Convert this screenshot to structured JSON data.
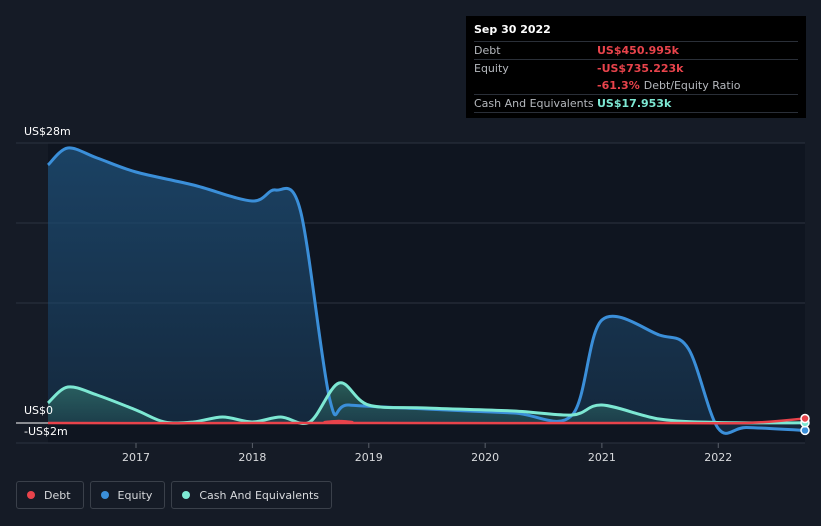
{
  "chart_data": {
    "type": "area",
    "x_ticks": [
      "2017",
      "2018",
      "2019",
      "2020",
      "2021",
      "2022"
    ],
    "y_label_top": "US$28m",
    "y_label_zero": "US$0",
    "y_label_bottom": "-US$2m",
    "ylim": [
      -2,
      28
    ],
    "x_range": [
      "2016-03-31",
      "2022-09-30"
    ],
    "series": [
      {
        "name": "Debt",
        "color": "#e8434b",
        "points": [
          [
            "2016-03-31",
            0
          ],
          [
            "2018-09-01",
            0
          ],
          [
            "2018-09-30",
            0.2
          ],
          [
            "2018-11-01",
            0
          ],
          [
            "2021-06-30",
            0
          ],
          [
            "2022-03-31",
            0
          ],
          [
            "2022-09-30",
            0.45
          ]
        ]
      },
      {
        "name": "Equity",
        "color": "#3b8fd9",
        "points": [
          [
            "2016-03-31",
            25.8
          ],
          [
            "2016-06-01",
            27.5
          ],
          [
            "2016-09-01",
            26.5
          ],
          [
            "2017-01-01",
            25.1
          ],
          [
            "2017-06-30",
            23.8
          ],
          [
            "2017-12-31",
            22.2
          ],
          [
            "2018-03-15",
            23.3
          ],
          [
            "2018-06-01",
            21.2
          ],
          [
            "2018-09-01",
            2.3
          ],
          [
            "2018-10-31",
            1.8
          ],
          [
            "2019-06-30",
            1.4
          ],
          [
            "2020-03-31",
            1.0
          ],
          [
            "2020-09-30",
            0.8
          ],
          [
            "2021-01-01",
            10.3
          ],
          [
            "2021-06-30",
            8.8
          ],
          [
            "2021-09-30",
            7.4
          ],
          [
            "2021-12-31",
            -0.5
          ],
          [
            "2022-03-31",
            -0.45
          ],
          [
            "2022-09-30",
            -0.74
          ]
        ]
      },
      {
        "name": "Cash And Equivalents",
        "color": "#7de8d3",
        "points": [
          [
            "2016-03-31",
            2.0
          ],
          [
            "2016-06-01",
            3.6
          ],
          [
            "2016-09-01",
            2.8
          ],
          [
            "2017-01-01",
            1.3
          ],
          [
            "2017-03-31",
            0.1
          ],
          [
            "2017-06-30",
            0.1
          ],
          [
            "2017-09-30",
            0.6
          ],
          [
            "2017-12-31",
            0.1
          ],
          [
            "2018-03-31",
            0.6
          ],
          [
            "2018-06-30",
            0.1
          ],
          [
            "2018-09-30",
            4.0
          ],
          [
            "2018-12-31",
            1.8
          ],
          [
            "2019-06-30",
            1.5
          ],
          [
            "2020-03-31",
            1.2
          ],
          [
            "2020-09-30",
            0.8
          ],
          [
            "2021-01-01",
            1.8
          ],
          [
            "2021-06-30",
            0.4
          ],
          [
            "2021-12-31",
            0.05
          ],
          [
            "2022-09-30",
            0.018
          ]
        ]
      }
    ]
  },
  "tooltip": {
    "date": "Sep 30 2022",
    "rows": [
      {
        "label": "Debt",
        "value": "US$450.995k"
      },
      {
        "label": "Equity",
        "value": "-US$735.223k"
      },
      {
        "label": "",
        "value": "-61.3%",
        "suffix": "Debt/Equity Ratio"
      },
      {
        "label": "Cash And Equivalents",
        "value": "US$17.953k"
      }
    ]
  },
  "legend": [
    {
      "label": "Debt",
      "color": "#e8434b"
    },
    {
      "label": "Equity",
      "color": "#3b8fd9"
    },
    {
      "label": "Cash And Equivalents",
      "color": "#7de8d3"
    }
  ]
}
